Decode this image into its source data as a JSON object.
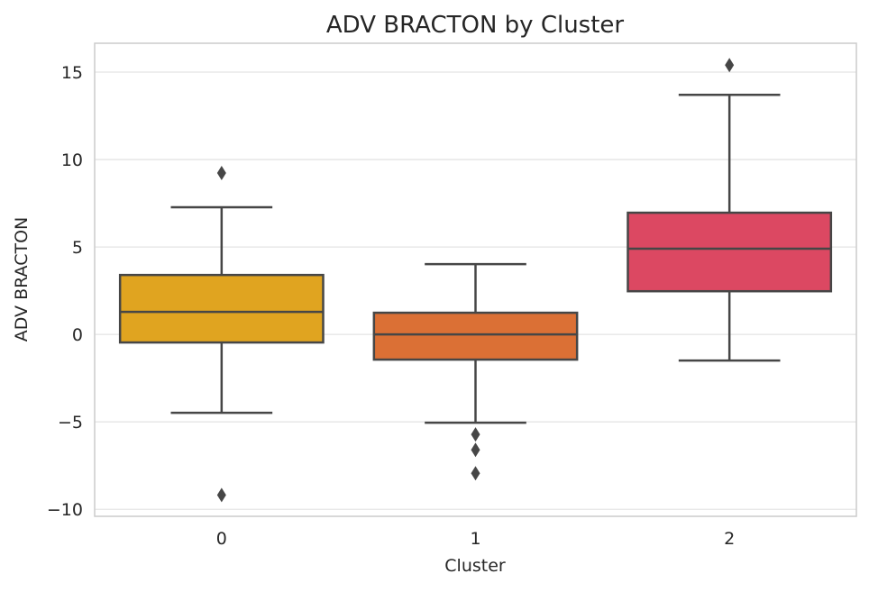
{
  "chart_data": {
    "type": "box",
    "title": "ADV BRACTON by Cluster",
    "xlabel": "Cluster",
    "ylabel": "ADV BRACTON",
    "categories": [
      "0",
      "1",
      "2"
    ],
    "ylim": [
      -10.4,
      16.65
    ],
    "yticks": [
      -10,
      -5,
      0,
      5,
      10,
      15
    ],
    "ytick_labels": [
      "−10",
      "−5",
      "0",
      "5",
      "10",
      "15"
    ],
    "grid": true,
    "boxes": [
      {
        "category": "0",
        "whisker_low": -4.48,
        "q1": -0.46,
        "median": 1.29,
        "q3": 3.4,
        "whisker_high": 7.27,
        "outliers": [
          9.23,
          -9.18
        ],
        "color": "#e0a420"
      },
      {
        "category": "1",
        "whisker_low": -5.05,
        "q1": -1.44,
        "median": 0.0,
        "q3": 1.24,
        "whisker_high": 4.02,
        "outliers": [
          -5.72,
          -6.6,
          -7.94
        ],
        "color": "#db7035"
      },
      {
        "category": "2",
        "whisker_low": -1.49,
        "q1": 2.47,
        "median": 4.9,
        "q3": 6.96,
        "whisker_high": 13.7,
        "outliers": [
          15.4
        ],
        "color": "#dc4862"
      }
    ]
  }
}
